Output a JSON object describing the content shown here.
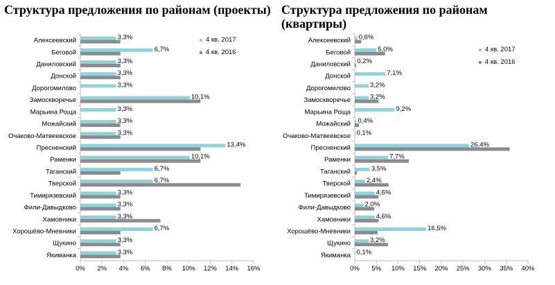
{
  "colors": {
    "series_2017": "#95cfd7",
    "series_2016": "#8a8b8f",
    "axis": "#bfbfbf"
  },
  "chart_data": [
    {
      "type": "bar",
      "orientation": "horizontal",
      "title": "Структура предложения по районам (проекты)",
      "categories": [
        "Алексеевский",
        "Беговой",
        "Даниловский",
        "Донской",
        "Дорогомилово",
        "Замоскворечье",
        "Марьина Роща",
        "Можайский",
        "Очаково-Матвеевское",
        "Пресненский",
        "Раменки",
        "Таганский",
        "Тверской",
        "Тимирязевский",
        "Фили-Давыдково",
        "Хамовники",
        "Хорошёво-Мневники",
        "Щукино",
        "Якиманка"
      ],
      "series": [
        {
          "name": "4 кв. 2017",
          "values": [
            3.3,
            6.7,
            3.3,
            3.3,
            3.3,
            10.1,
            3.3,
            3.3,
            3.3,
            13.4,
            10.1,
            6.7,
            6.7,
            3.3,
            3.3,
            3.3,
            6.7,
            3.3,
            3.3
          ]
        },
        {
          "name": "4 кв. 2016",
          "values": [
            3.7,
            3.7,
            3.7,
            3.7,
            null,
            11.1,
            null,
            3.7,
            3.7,
            11.1,
            11.1,
            3.7,
            14.8,
            3.7,
            3.7,
            7.4,
            3.7,
            3.7,
            3.7
          ]
        }
      ],
      "data_labels": [
        "3,3%",
        "6,7%",
        "3,3%",
        "3,3%",
        "3,3%",
        "10,1%",
        "3,3%",
        "3,3%",
        "3,3%",
        "13,4%",
        "10,1%",
        "6,7%",
        "6,7%",
        "3,3%",
        "3,3%",
        "3,3%",
        "6,7%",
        "3,3%",
        "3,3%"
      ],
      "xlim": [
        0,
        16
      ],
      "x_ticks": [
        "0%",
        "2%",
        "4%",
        "6%",
        "8%",
        "10%",
        "12%",
        "14%",
        "16%"
      ],
      "legend": "top-right"
    },
    {
      "type": "bar",
      "orientation": "horizontal",
      "title": "Структура предложения по районам (квартиры)",
      "categories": [
        "Алексеевский",
        "Беговой",
        "Даниловский",
        "Донской",
        "Дорогомилово",
        "Замоскворечье",
        "Марьина Роща",
        "Можайский",
        "Очаково-Матвеевское",
        "Пресненский",
        "Раменки",
        "Таганский",
        "Тверской",
        "Тимирязевский",
        "Фили-Давыдково",
        "Хамовники",
        "Хорошёво-Мневники",
        "Щукино",
        "Якиманка"
      ],
      "series": [
        {
          "name": "4 кв. 2017",
          "values": [
            0.6,
            5.0,
            0.2,
            7.1,
            3.2,
            3.2,
            9.2,
            0.4,
            0.1,
            26.4,
            7.7,
            3.5,
            2.4,
            4.6,
            2.0,
            4.6,
            16.5,
            3.2,
            0.1
          ]
        },
        {
          "name": "4 кв. 2016",
          "values": [
            1.5,
            7.0,
            0.3,
            null,
            null,
            5.5,
            null,
            1.0,
            null,
            35.8,
            12.5,
            0.5,
            7.8,
            5.5,
            4.5,
            5.5,
            5.3,
            7.7,
            null
          ]
        }
      ],
      "data_labels": [
        "0,6%",
        "5,0%",
        "0,2%",
        "7,1%",
        "3,2%",
        "3,2%",
        "9,2%",
        "0,4%",
        "0,1%",
        "26,4%",
        "7,7%",
        "3,5%",
        "2,4%",
        "4,6%",
        "2,0%",
        "4,6%",
        "16,5%",
        "3,2%",
        "0,1%"
      ],
      "xlim": [
        0,
        40
      ],
      "x_ticks": [
        "0%",
        "5%",
        "10%",
        "15%",
        "20%",
        "25%",
        "30%",
        "35%",
        "40%"
      ],
      "legend": "top-right"
    }
  ]
}
